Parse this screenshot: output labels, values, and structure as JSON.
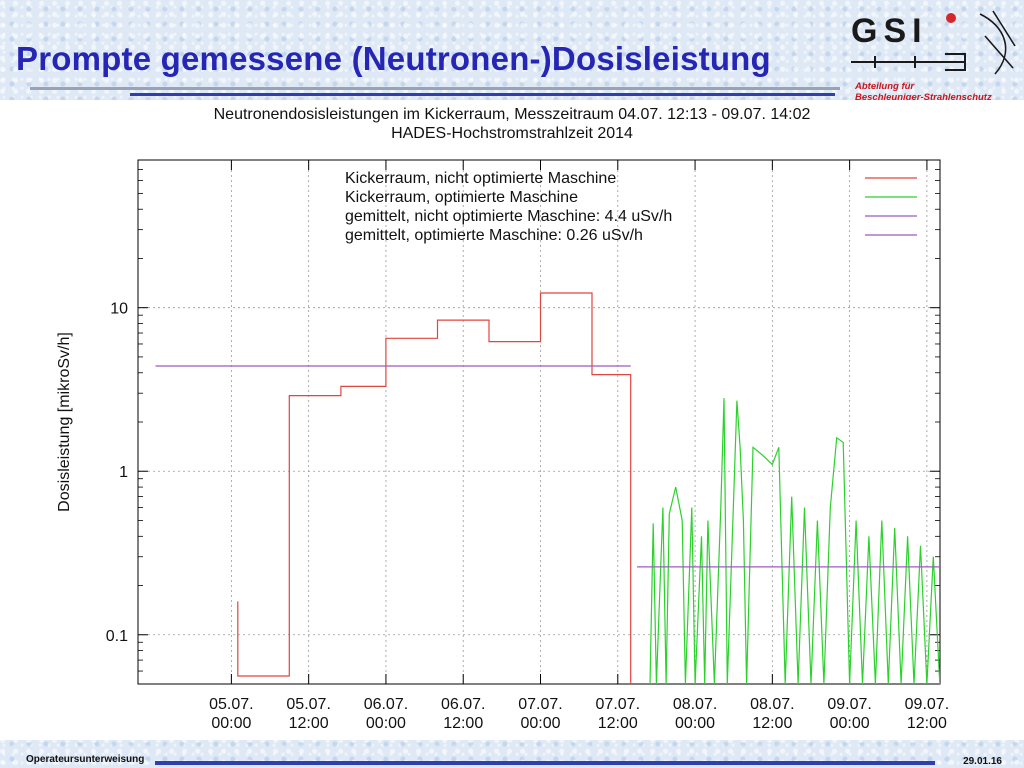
{
  "slide": {
    "title": "Prompte gemessene (Neutronen-)Dosisleistung",
    "department_line1": "Abteilung für",
    "department_line2": "Beschleuniger-Strahlenschutz",
    "footer_left": "Operateursunterweisung",
    "footer_right": "29.01.16",
    "logo_text": "GSI"
  },
  "colors": {
    "title": "#2626b4",
    "department": "#c8161d",
    "series_not_optimized": "#e0453f",
    "series_optimized": "#2cd12c",
    "mean_lines": "#9b5bc4"
  },
  "chart_data": {
    "type": "line",
    "title": "Neutronendosisleistungen im Kickerraum, Messzeitraum 04.07. 12:13 - 09.07. 14:02",
    "subtitle": "HADES-Hochstromstrahlzeit 2014",
    "ylabel": "Dosisleistung [mikroSv/h]",
    "xlabel": "",
    "y_scale": "log",
    "ylim": [
      0.05,
      80
    ],
    "xlim": [
      "04.07. 09:30",
      "09.07. 14:02"
    ],
    "x_unit": "hours since 04.07. 00:00 (x axis labelled in dates)",
    "yticks": [
      {
        "value": 0.1,
        "label": "0.1"
      },
      {
        "value": 1,
        "label": "1"
      },
      {
        "value": 10,
        "label": "10"
      }
    ],
    "xticks": [
      {
        "line1": "05.07.",
        "line2": "00:00",
        "value": "05.07. 00:00"
      },
      {
        "line1": "05.07.",
        "line2": "12:00",
        "value": "05.07. 12:00"
      },
      {
        "line1": "06.07.",
        "line2": "00:00",
        "value": "06.07. 00:00"
      },
      {
        "line1": "06.07.",
        "line2": "12:00",
        "value": "06.07. 12:00"
      },
      {
        "line1": "07.07.",
        "line2": "00:00",
        "value": "07.07. 00:00"
      },
      {
        "line1": "07.07.",
        "line2": "12:00",
        "value": "07.07. 12:00"
      },
      {
        "line1": "08.07.",
        "line2": "00:00",
        "value": "08.07. 00:00"
      },
      {
        "line1": "08.07.",
        "line2": "12:00",
        "value": "08.07. 12:00"
      },
      {
        "line1": "09.07.",
        "line2": "00:00",
        "value": "09.07. 00:00"
      },
      {
        "line1": "09.07.",
        "line2": "12:00",
        "value": "09.07. 12:00"
      }
    ],
    "grid": true,
    "legend_position": "top-right",
    "series": [
      {
        "name": "Kickerraum, nicht optimierte Maschine",
        "style": "step",
        "color": "#e0453f",
        "points": [
          [
            "05.07. 01:00",
            0.16
          ],
          [
            "05.07. 01:00",
            0.056
          ],
          [
            "05.07. 09:00",
            0.056
          ],
          [
            "05.07. 09:00",
            2.9
          ],
          [
            "05.07. 17:00",
            2.9
          ],
          [
            "05.07. 17:00",
            3.3
          ],
          [
            "06.07. 00:00",
            3.3
          ],
          [
            "06.07. 00:00",
            6.5
          ],
          [
            "06.07. 08:00",
            6.5
          ],
          [
            "06.07. 08:00",
            8.4
          ],
          [
            "06.07. 16:00",
            8.4
          ],
          [
            "06.07. 16:00",
            6.2
          ],
          [
            "07.07. 00:00",
            6.2
          ],
          [
            "07.07. 00:00",
            12.3
          ],
          [
            "07.07. 08:00",
            12.3
          ],
          [
            "07.07. 08:00",
            3.9
          ],
          [
            "07.07. 14:00",
            3.9
          ],
          [
            "07.07. 14:00",
            0.05
          ]
        ]
      },
      {
        "name": "Kickerraum, optimierte Maschine",
        "style": "line",
        "color": "#2cd12c",
        "points": [
          [
            "07.07. 17:00",
            0.05
          ],
          [
            "07.07. 17:30",
            0.48
          ],
          [
            "07.07. 18:00",
            0.05
          ],
          [
            "07.07. 19:00",
            0.6
          ],
          [
            "07.07. 19:30",
            0.05
          ],
          [
            "07.07. 20:00",
            0.55
          ],
          [
            "07.07. 21:00",
            0.8
          ],
          [
            "07.07. 22:00",
            0.5
          ],
          [
            "07.07. 22:30",
            0.05
          ],
          [
            "07.07. 23:30",
            0.6
          ],
          [
            "08.07. 00:00",
            0.05
          ],
          [
            "08.07. 01:00",
            0.4
          ],
          [
            "08.07. 01:30",
            0.05
          ],
          [
            "08.07. 02:00",
            0.5
          ],
          [
            "08.07. 03:00",
            0.05
          ],
          [
            "08.07. 04:00",
            0.6
          ],
          [
            "08.07. 04:30",
            2.8
          ],
          [
            "08.07. 05:00",
            0.05
          ],
          [
            "08.07. 06:00",
            0.7
          ],
          [
            "08.07. 06:30",
            2.7
          ],
          [
            "08.07. 07:00",
            1.4
          ],
          [
            "08.07. 07:30",
            0.5
          ],
          [
            "08.07. 08:00",
            0.05
          ],
          [
            "08.07. 09:00",
            1.4
          ],
          [
            "08.07. 10:00",
            1.3
          ],
          [
            "08.07. 11:00",
            1.2
          ],
          [
            "08.07. 12:00",
            1.1
          ],
          [
            "08.07. 13:00",
            1.4
          ],
          [
            "08.07. 14:00",
            0.05
          ],
          [
            "08.07. 15:00",
            0.7
          ],
          [
            "08.07. 16:00",
            0.05
          ],
          [
            "08.07. 17:00",
            0.6
          ],
          [
            "08.07. 18:00",
            0.05
          ],
          [
            "08.07. 19:00",
            0.5
          ],
          [
            "08.07. 20:00",
            0.05
          ],
          [
            "08.07. 21:00",
            0.6
          ],
          [
            "08.07. 22:00",
            1.6
          ],
          [
            "08.07. 23:00",
            1.5
          ],
          [
            "09.07. 00:00",
            0.05
          ],
          [
            "09.07. 01:00",
            0.5
          ],
          [
            "09.07. 02:00",
            0.05
          ],
          [
            "09.07. 03:00",
            0.4
          ],
          [
            "09.07. 04:00",
            0.05
          ],
          [
            "09.07. 05:00",
            0.5
          ],
          [
            "09.07. 06:00",
            0.05
          ],
          [
            "09.07. 07:00",
            0.45
          ],
          [
            "09.07. 08:00",
            0.05
          ],
          [
            "09.07. 09:00",
            0.4
          ],
          [
            "09.07. 10:00",
            0.05
          ],
          [
            "09.07. 11:00",
            0.35
          ],
          [
            "09.07. 12:00",
            0.05
          ],
          [
            "09.07. 13:00",
            0.3
          ],
          [
            "09.07. 14:00",
            0.05
          ]
        ]
      },
      {
        "name": "gemittelt, nicht optimierte Maschine: 4.4 uSv/h",
        "style": "line",
        "color": "#9b5bc4",
        "points": [
          [
            "04.07. 12:13",
            4.4
          ],
          [
            "07.07. 14:00",
            4.4
          ]
        ]
      },
      {
        "name": "gemittelt, optimierte Maschine: 0.26 uSv/h",
        "style": "line",
        "color": "#9b5bc4",
        "points": [
          [
            "07.07. 15:00",
            0.26
          ],
          [
            "09.07. 14:02",
            0.26
          ]
        ]
      }
    ]
  }
}
